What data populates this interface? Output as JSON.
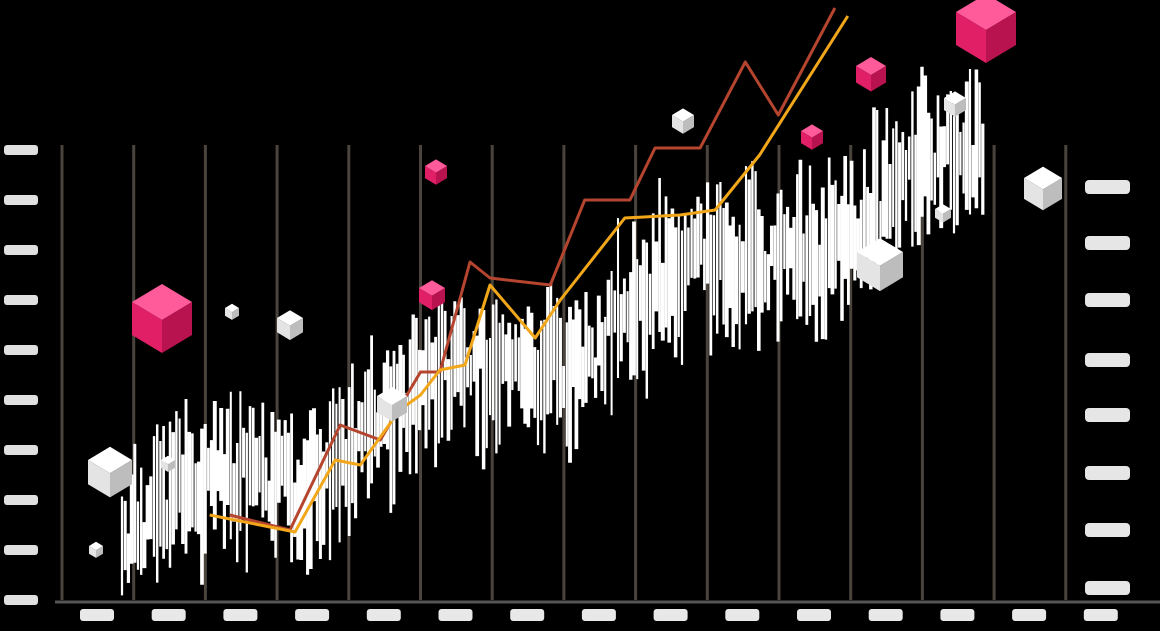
{
  "chart_data": {
    "type": "line",
    "xlim": [
      0,
      15
    ],
    "xticks": [
      0,
      1,
      2,
      3,
      4,
      5,
      6,
      7,
      8,
      9,
      10,
      11,
      12,
      13,
      14
    ],
    "ylim": [
      0,
      12
    ],
    "yticks": [
      0,
      1,
      2,
      3,
      4,
      5,
      6,
      7,
      8,
      9
    ],
    "grid": true,
    "grid_color": "#4a443c",
    "series": [
      {
        "color": "#b5452f",
        "x": [
          2.34,
          3.18,
          3.88,
          4.44,
          5.0,
          5.27,
          5.69,
          5.97,
          6.81,
          7.29,
          7.92,
          8.27,
          8.9,
          9.53,
          9.99,
          10.78
        ],
        "values": [
          1.7,
          1.4,
          3.5,
          3.2,
          4.56,
          4.56,
          6.76,
          6.44,
          6.3,
          8.0,
          8.0,
          9.04,
          9.04,
          10.76,
          9.7,
          11.84
        ]
      },
      {
        "color": "#f2a71b",
        "x": [
          2.06,
          3.25,
          3.81,
          4.16,
          4.71,
          5.0,
          5.27,
          5.62,
          5.97,
          6.6,
          6.95,
          7.85,
          8.62,
          9.11,
          9.73,
          10.96
        ],
        "values": [
          1.7,
          1.36,
          2.8,
          2.7,
          3.8,
          4.1,
          4.6,
          4.7,
          6.3,
          5.24,
          6.0,
          7.64,
          7.7,
          7.8,
          8.9,
          11.68
        ]
      }
    ]
  }
}
